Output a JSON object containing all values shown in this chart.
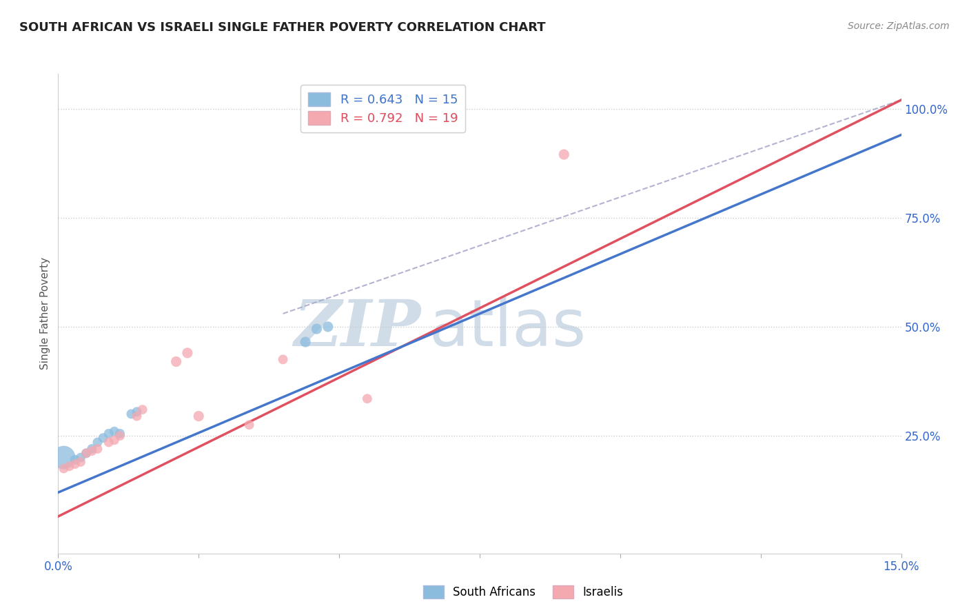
{
  "title": "SOUTH AFRICAN VS ISRAELI SINGLE FATHER POVERTY CORRELATION CHART",
  "source": "Source: ZipAtlas.com",
  "ylabel": "Single Father Poverty",
  "legend_label_blue": "South Africans",
  "legend_label_pink": "Israelis",
  "r_blue": "0.643",
  "n_blue": "15",
  "r_pink": "0.792",
  "n_pink": "19",
  "xlim": [
    0.0,
    0.15
  ],
  "ylim": [
    -0.02,
    1.08
  ],
  "x_ticks": [
    0.0,
    0.025,
    0.05,
    0.075,
    0.1,
    0.125,
    0.15
  ],
  "y_ticks": [
    0.25,
    0.5,
    0.75,
    1.0
  ],
  "y_tick_labels": [
    "25.0%",
    "50.0%",
    "75.0%",
    "100.0%"
  ],
  "background_color": "#ffffff",
  "grid_color": "#cccccc",
  "blue_color": "#8bbcde",
  "pink_color": "#f4a8b0",
  "blue_line_color": "#4477cc",
  "pink_line_color": "#e05060",
  "dashed_line_color": "#aaaacc",
  "watermark_color": "#d0dce8",
  "south_african_points": [
    [
      0.001,
      0.2
    ],
    [
      0.003,
      0.195
    ],
    [
      0.004,
      0.2
    ],
    [
      0.005,
      0.21
    ],
    [
      0.006,
      0.22
    ],
    [
      0.007,
      0.235
    ],
    [
      0.008,
      0.245
    ],
    [
      0.009,
      0.255
    ],
    [
      0.01,
      0.26
    ],
    [
      0.011,
      0.255
    ],
    [
      0.013,
      0.3
    ],
    [
      0.014,
      0.305
    ],
    [
      0.044,
      0.465
    ],
    [
      0.046,
      0.495
    ],
    [
      0.048,
      0.5
    ]
  ],
  "south_african_sizes": [
    600,
    100,
    100,
    100,
    100,
    100,
    100,
    100,
    100,
    100,
    100,
    100,
    120,
    120,
    120
  ],
  "israeli_points": [
    [
      0.001,
      0.175
    ],
    [
      0.002,
      0.18
    ],
    [
      0.003,
      0.185
    ],
    [
      0.004,
      0.19
    ],
    [
      0.005,
      0.21
    ],
    [
      0.006,
      0.215
    ],
    [
      0.007,
      0.22
    ],
    [
      0.009,
      0.235
    ],
    [
      0.01,
      0.24
    ],
    [
      0.011,
      0.25
    ],
    [
      0.014,
      0.295
    ],
    [
      0.015,
      0.31
    ],
    [
      0.021,
      0.42
    ],
    [
      0.023,
      0.44
    ],
    [
      0.025,
      0.295
    ],
    [
      0.034,
      0.275
    ],
    [
      0.04,
      0.425
    ],
    [
      0.055,
      0.335
    ],
    [
      0.09,
      0.895
    ]
  ],
  "israeli_sizes": [
    100,
    100,
    100,
    100,
    100,
    100,
    100,
    100,
    100,
    100,
    100,
    100,
    120,
    120,
    120,
    100,
    100,
    100,
    120
  ],
  "blue_line": {
    "x0": 0.0,
    "y0": 0.12,
    "x1": 0.15,
    "y1": 0.94
  },
  "pink_line": {
    "x0": 0.0,
    "y0": 0.065,
    "x1": 0.15,
    "y1": 1.02
  },
  "dashed_line": {
    "x0": 0.04,
    "y0": 0.53,
    "x1": 0.15,
    "y1": 1.02
  }
}
